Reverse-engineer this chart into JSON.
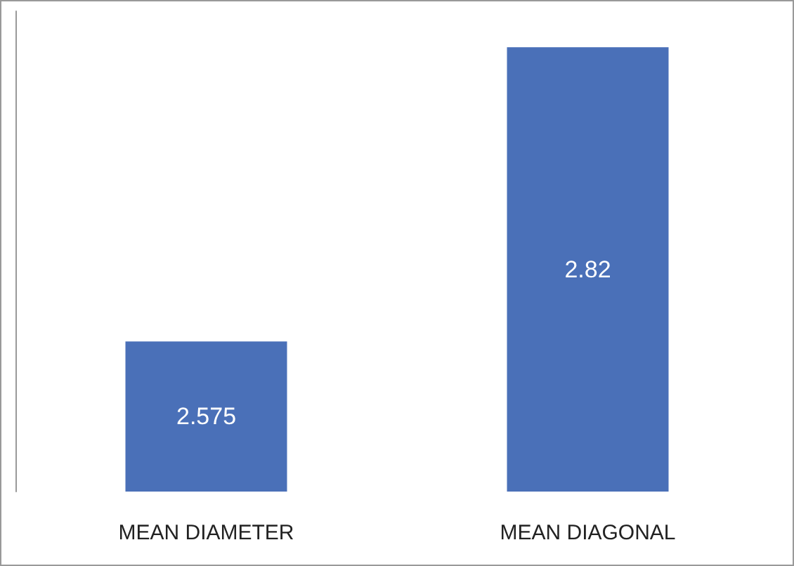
{
  "chart_data": {
    "type": "bar",
    "categories": [
      "MEAN DIAMETER",
      "MEAN DIAGONAL"
    ],
    "values": [
      2.575,
      2.82
    ],
    "color": "#4a70b8",
    "ylim": [
      2.45,
      2.85
    ],
    "data_labels": true,
    "tick_labels": "x"
  }
}
